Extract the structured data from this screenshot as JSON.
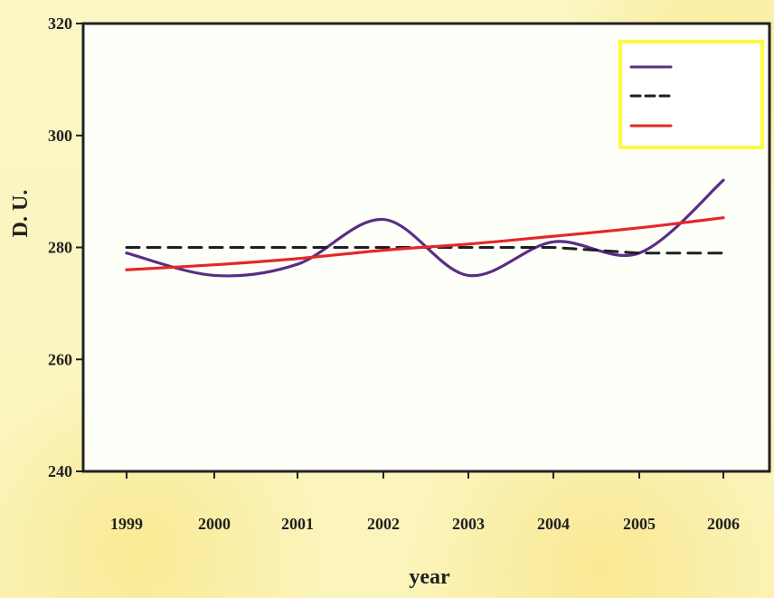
{
  "chart_data": {
    "type": "line",
    "title": "",
    "xlabel": "year",
    "ylabel": "D. U.",
    "x": [
      1999,
      2000,
      2001,
      2002,
      2003,
      2004,
      2005,
      2006
    ],
    "x_tick_labels": [
      "1999",
      "2000",
      "2001",
      "2002",
      "2003",
      "2004",
      "2005",
      "2006"
    ],
    "ylim": [
      240,
      320
    ],
    "y_ticks": [
      240,
      260,
      280,
      300,
      320
    ],
    "y_tick_labels": [
      "240",
      "260",
      "280",
      "300",
      "320"
    ],
    "grid": false,
    "legend_position": "top-right",
    "series": [
      {
        "name": "",
        "color": "#5a2e84",
        "style": "solid",
        "values": [
          279,
          275,
          277,
          285,
          275,
          281,
          279,
          292
        ]
      },
      {
        "name": "",
        "color": "#1f1f1f",
        "style": "dashed",
        "values": [
          280,
          280,
          280,
          280,
          280,
          280,
          279,
          279
        ]
      },
      {
        "name": "",
        "color": "#e22929",
        "style": "solid",
        "values": [
          276,
          276.9,
          278,
          279.5,
          280.6,
          282,
          283.5,
          285.3
        ]
      }
    ]
  }
}
